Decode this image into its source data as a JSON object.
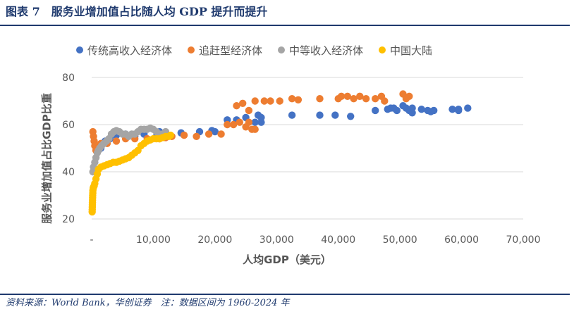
{
  "header": {
    "title": "图表 7　服务业增加值占比随人均 GDP 提升而提升"
  },
  "footer": {
    "text": "资料来源：World Bank，华创证券　注：数据区间为 1960-2024 年"
  },
  "chart_data": {
    "type": "scatter",
    "xlabel": "人均GDP（美元）",
    "ylabel": "服务业增加值占比GDP比重",
    "xlim": [
      0,
      70000
    ],
    "ylim": [
      20,
      80
    ],
    "x_tick_labels": [
      "-",
      "10,000",
      "20,000",
      "30,000",
      "40,000",
      "50,000",
      "60,000",
      "70,000"
    ],
    "y_tick_labels": [
      "20",
      "40",
      "60",
      "80"
    ],
    "grid": "horizontal",
    "legend_position": "top",
    "series": [
      {
        "name": "传统高收入经济体",
        "color": "#4472c4",
        "points": [
          [
            1500,
            50
          ],
          [
            2200,
            53
          ],
          [
            3000,
            54
          ],
          [
            4000,
            55.5
          ],
          [
            5500,
            56
          ],
          [
            7000,
            55
          ],
          [
            8500,
            56
          ],
          [
            10500,
            55
          ],
          [
            11000,
            57
          ],
          [
            14500,
            56.5
          ],
          [
            17500,
            57
          ],
          [
            19500,
            57.5
          ],
          [
            20000,
            57
          ],
          [
            22000,
            62
          ],
          [
            23500,
            62
          ],
          [
            25000,
            63
          ],
          [
            27000,
            64
          ],
          [
            27500,
            63
          ],
          [
            26500,
            61
          ],
          [
            27500,
            61
          ],
          [
            32500,
            64
          ],
          [
            37000,
            64
          ],
          [
            39500,
            64
          ],
          [
            42000,
            63.5
          ],
          [
            46000,
            66
          ],
          [
            48000,
            66.5
          ],
          [
            48500,
            67
          ],
          [
            49000,
            67
          ],
          [
            49500,
            66
          ],
          [
            50500,
            68
          ],
          [
            51000,
            67
          ],
          [
            51500,
            66
          ],
          [
            52000,
            67
          ],
          [
            52000,
            65
          ],
          [
            53500,
            66.5
          ],
          [
            54500,
            66
          ],
          [
            55000,
            65.5
          ],
          [
            55500,
            66
          ],
          [
            58500,
            66.5
          ],
          [
            59500,
            66.5
          ],
          [
            59500,
            66
          ],
          [
            61000,
            67
          ]
        ]
      },
      {
        "name": "追赶型经济体",
        "color": "#ed7d31",
        "points": [
          [
            200,
            57
          ],
          [
            300,
            55
          ],
          [
            400,
            53
          ],
          [
            500,
            51
          ],
          [
            700,
            49
          ],
          [
            1000,
            50
          ],
          [
            1500,
            52
          ],
          [
            2500,
            52
          ],
          [
            4000,
            53
          ],
          [
            5500,
            54
          ],
          [
            7000,
            54
          ],
          [
            9000,
            54
          ],
          [
            11000,
            54
          ],
          [
            12000,
            54.5
          ],
          [
            13000,
            55
          ],
          [
            15000,
            55.5
          ],
          [
            17000,
            55
          ],
          [
            19000,
            56
          ],
          [
            21000,
            56
          ],
          [
            22000,
            60
          ],
          [
            23000,
            60
          ],
          [
            24000,
            61
          ],
          [
            25000,
            59
          ],
          [
            25500,
            61
          ],
          [
            26000,
            58
          ],
          [
            26500,
            58
          ],
          [
            23500,
            68
          ],
          [
            24500,
            69
          ],
          [
            25500,
            66
          ],
          [
            26500,
            70
          ],
          [
            28000,
            70
          ],
          [
            29000,
            70
          ],
          [
            30500,
            70
          ],
          [
            32500,
            71
          ],
          [
            33500,
            70.5
          ],
          [
            37000,
            71
          ],
          [
            40000,
            71
          ],
          [
            40500,
            72
          ],
          [
            41500,
            72
          ],
          [
            42500,
            71
          ],
          [
            43500,
            72
          ],
          [
            44500,
            71
          ],
          [
            46000,
            71
          ],
          [
            47000,
            72
          ],
          [
            47500,
            70
          ],
          [
            50500,
            73
          ],
          [
            51500,
            72
          ],
          [
            51000,
            71
          ]
        ]
      },
      {
        "name": "中等收入经济体",
        "color": "#a5a5a5",
        "points": [
          [
            200,
            40
          ],
          [
            300,
            42
          ],
          [
            500,
            44
          ],
          [
            700,
            46
          ],
          [
            900,
            48
          ],
          [
            1100,
            49
          ],
          [
            1300,
            50
          ],
          [
            1600,
            51
          ],
          [
            2000,
            52
          ],
          [
            2400,
            53
          ],
          [
            2800,
            54
          ],
          [
            3200,
            56
          ],
          [
            3600,
            57
          ],
          [
            4000,
            57.5
          ],
          [
            4500,
            57
          ],
          [
            5000,
            56
          ],
          [
            5500,
            56
          ],
          [
            6000,
            55
          ],
          [
            6500,
            56
          ],
          [
            7000,
            56
          ],
          [
            7500,
            57
          ],
          [
            8000,
            58
          ],
          [
            8500,
            58
          ],
          [
            9000,
            58
          ],
          [
            9500,
            58.5
          ],
          [
            10000,
            58
          ],
          [
            10500,
            57
          ],
          [
            11000,
            56
          ],
          [
            11500,
            56
          ],
          [
            12000,
            57
          ]
        ]
      },
      {
        "name": "中国大陆",
        "color": "#ffc000",
        "points": [
          [
            80,
            23
          ],
          [
            90,
            24
          ],
          [
            100,
            25
          ],
          [
            120,
            26
          ],
          [
            130,
            27
          ],
          [
            140,
            28
          ],
          [
            150,
            29
          ],
          [
            160,
            30
          ],
          [
            180,
            31
          ],
          [
            200,
            32
          ],
          [
            250,
            33
          ],
          [
            300,
            33.5
          ],
          [
            400,
            34
          ],
          [
            500,
            35
          ],
          [
            700,
            37
          ],
          [
            900,
            39
          ],
          [
            1100,
            41
          ],
          [
            1500,
            42
          ],
          [
            2000,
            42.5
          ],
          [
            2500,
            43
          ],
          [
            3000,
            43.5
          ],
          [
            3500,
            44
          ],
          [
            4000,
            44
          ],
          [
            4500,
            44.5
          ],
          [
            5000,
            45
          ],
          [
            5500,
            45.5
          ],
          [
            6000,
            46
          ],
          [
            6500,
            47
          ],
          [
            7000,
            48
          ],
          [
            7500,
            49
          ],
          [
            8000,
            51
          ],
          [
            8500,
            52
          ],
          [
            9000,
            53
          ],
          [
            9500,
            53.5
          ],
          [
            10000,
            54
          ],
          [
            10500,
            54
          ],
          [
            11000,
            54
          ],
          [
            11500,
            54.5
          ],
          [
            12000,
            55
          ],
          [
            12500,
            55
          ],
          [
            12800,
            55.5
          ]
        ]
      }
    ]
  }
}
